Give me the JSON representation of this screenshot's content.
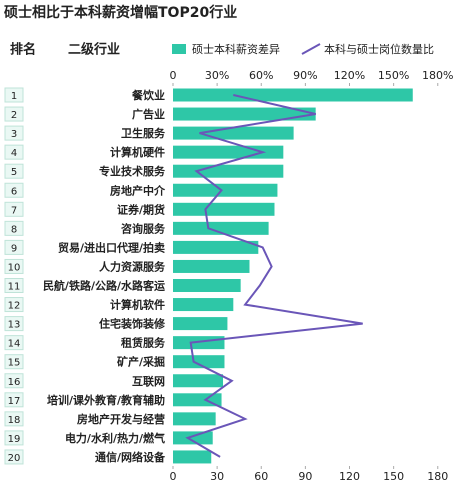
{
  "chart_data": {
    "type": "bar",
    "orientation": "horizontal",
    "title": "硕士相比于本科薪资增幅TOP20行业",
    "column_headers": [
      "排名",
      "二级行业"
    ],
    "ranks": [
      "1",
      "2",
      "3",
      "4",
      "5",
      "6",
      "7",
      "8",
      "9",
      "10",
      "11",
      "12",
      "13",
      "14",
      "15",
      "16",
      "17",
      "18",
      "19",
      "20"
    ],
    "categories": [
      "餐饮业",
      "广告业",
      "卫生服务",
      "计算机硬件",
      "专业技术服务",
      "房地产中介",
      "证券/期货",
      "咨询服务",
      "贸易/进出口代理/拍卖",
      "人力资源服务",
      "民航/铁路/公路/水路客运",
      "计算机软件",
      "住宅装饰装修",
      "租赁服务",
      "矿产/采掘",
      "互联网",
      "培训/课外教育/教育辅助",
      "房地产开发与经营",
      "电力/水利/热力/燃气",
      "通信/网络设备"
    ],
    "series": [
      {
        "name": "硕士本科薪资差异",
        "color": "#2ec7a7",
        "values": [
          163,
          97,
          82,
          75,
          75,
          71,
          69,
          65,
          58,
          52,
          46,
          41,
          37,
          35,
          35,
          34,
          33,
          29,
          27,
          26
        ]
      },
      {
        "name": "本科与硕士岗位数量比",
        "color": "#6a56b8",
        "axis": "x2",
        "values": [
          41,
          97,
          18,
          61,
          16,
          33,
          22,
          24,
          61,
          67,
          59,
          49,
          129,
          12,
          14,
          40,
          22,
          49,
          10,
          32
        ]
      }
    ],
    "xlim": [
      0,
      189
    ],
    "xticks": [
      0,
      {
        "value": 30,
        "label": "30%"
      },
      {
        "value": 60,
        "label": "60%"
      },
      {
        "value": 90,
        "label": "90%"
      },
      {
        "value": 120,
        "label": "120%"
      },
      {
        "value": 150,
        "label": "150%"
      },
      {
        "value": 180,
        "label": "180%"
      }
    ],
    "x2lim": [
      0,
      189
    ],
    "x2ticks": [
      0,
      30,
      60,
      90,
      120,
      150,
      180
    ],
    "legend": "top"
  }
}
